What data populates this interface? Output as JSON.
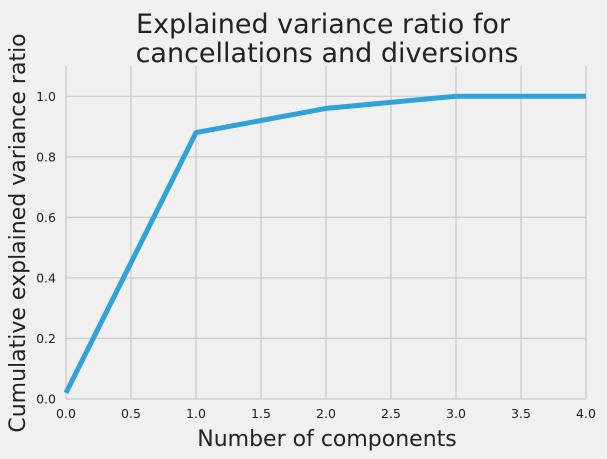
{
  "chart_data": {
    "type": "line",
    "title_lines": [
      "Explained variance ratio for",
      "cancellations and diversions"
    ],
    "xlabel": "Number of components",
    "ylabel": "Cumulative explained variance ratio",
    "xlim": [
      0.0,
      4.0
    ],
    "ylim": [
      0.0,
      1.1
    ],
    "xticks": [
      "0.0",
      "0.5",
      "1.0",
      "1.5",
      "2.0",
      "2.5",
      "3.0",
      "3.5",
      "4.0"
    ],
    "xtick_values": [
      0.0,
      0.5,
      1.0,
      1.5,
      2.0,
      2.5,
      3.0,
      3.5,
      4.0
    ],
    "yticks": [
      "0.0",
      "0.2",
      "0.4",
      "0.6",
      "0.8",
      "1.0"
    ],
    "ytick_values": [
      0.0,
      0.2,
      0.4,
      0.6,
      0.8,
      1.0
    ],
    "grid": true,
    "series": [
      {
        "x": [
          0,
          1,
          2,
          3,
          4
        ],
        "values": [
          0.02,
          0.88,
          0.96,
          1.0,
          1.0
        ],
        "color": "#30a2da"
      }
    ]
  }
}
